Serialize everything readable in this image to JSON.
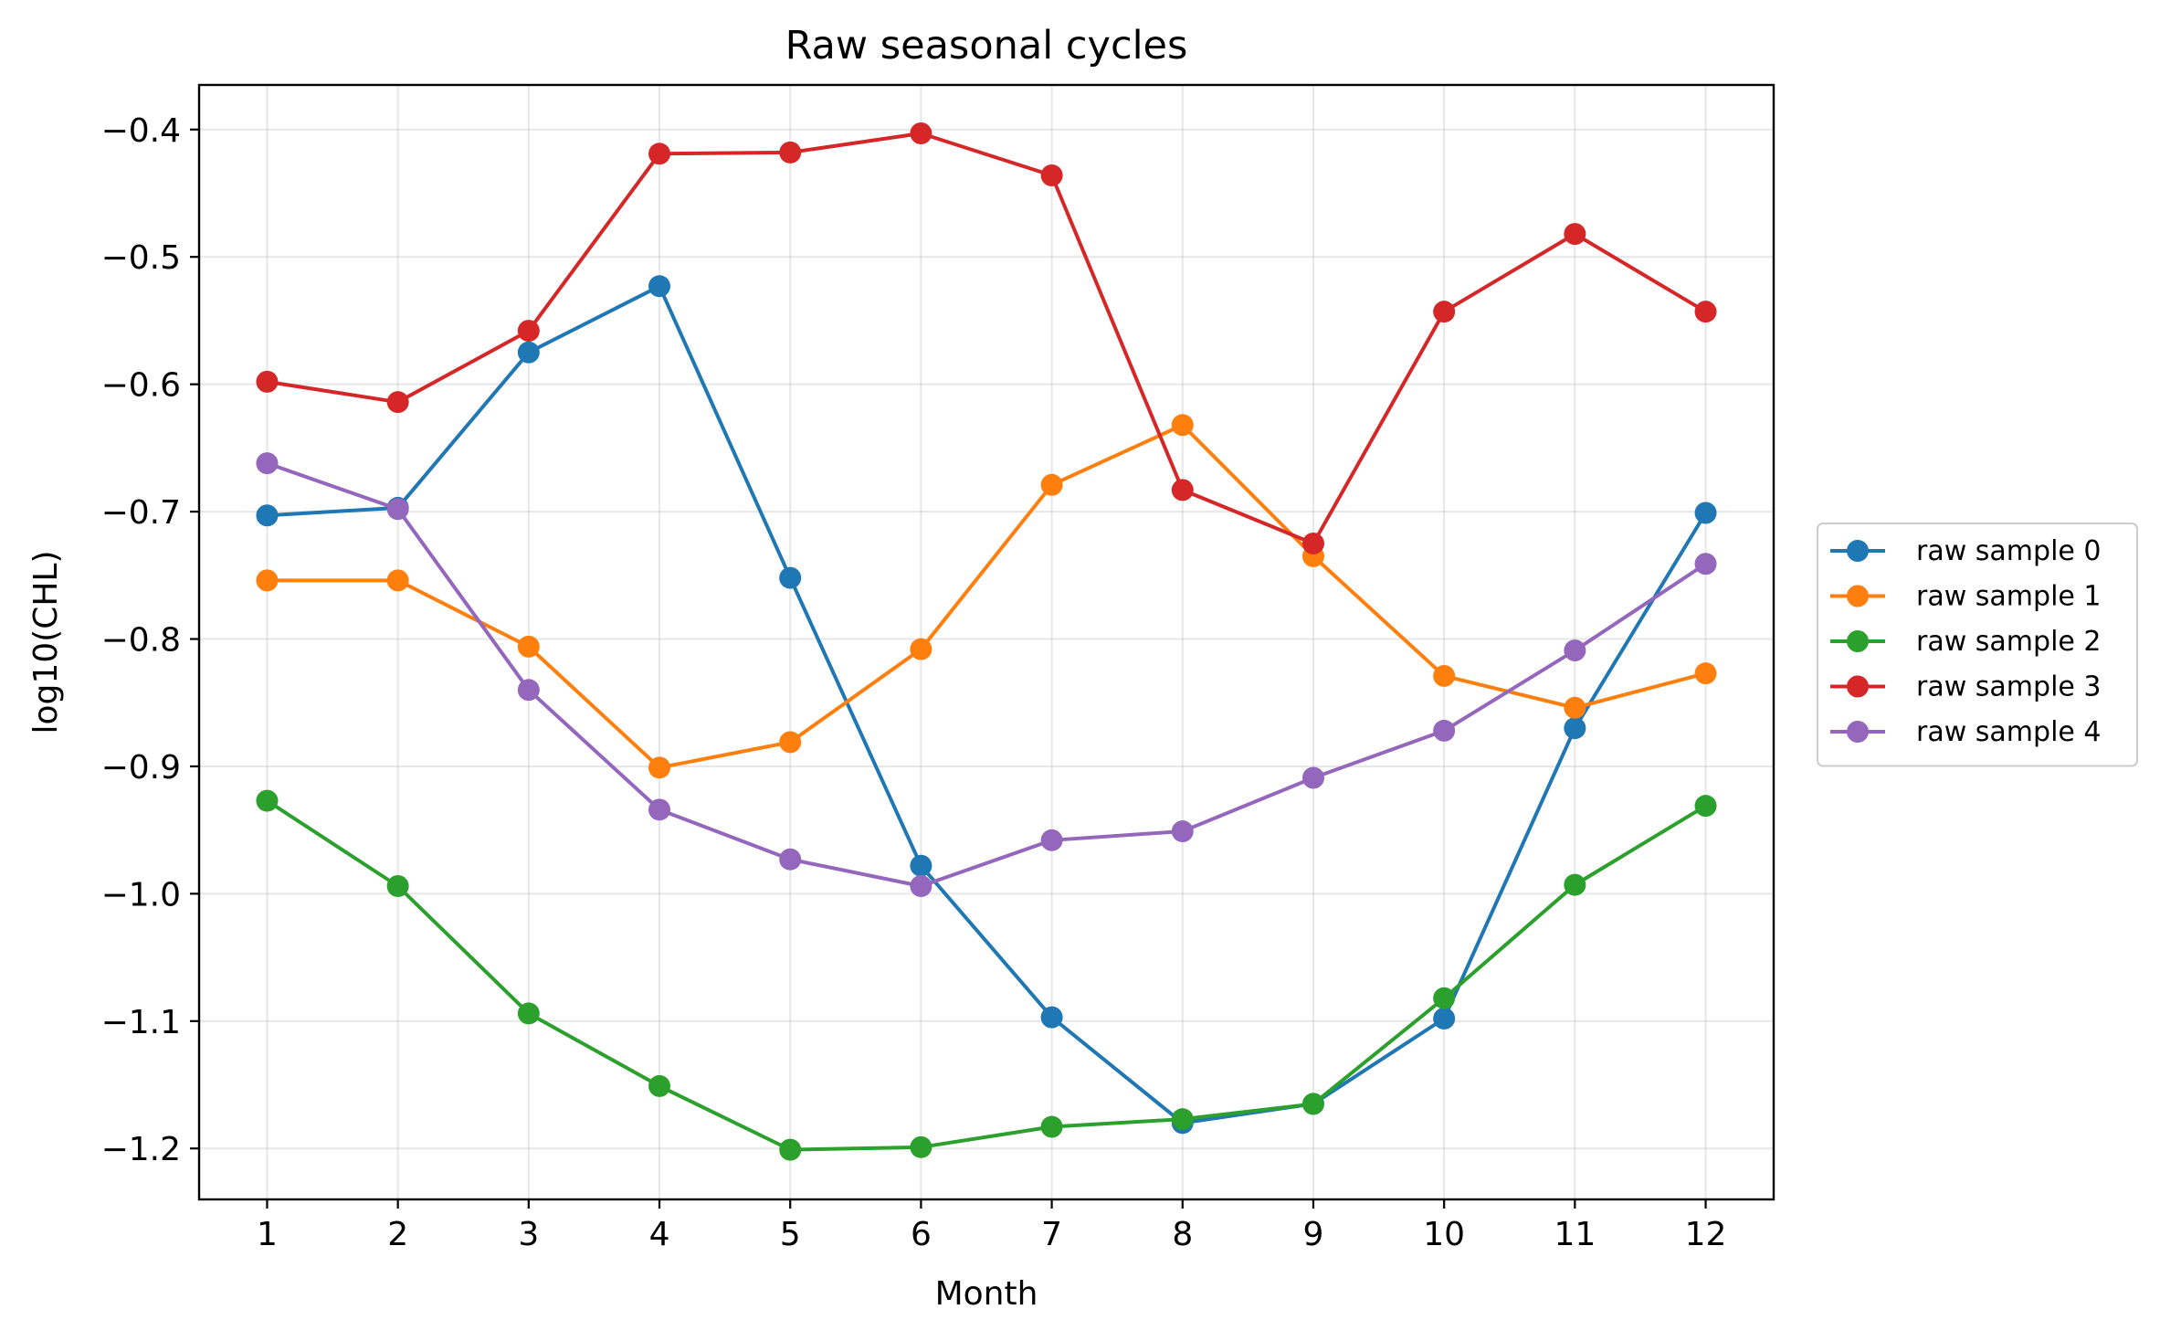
{
  "chart_data": {
    "type": "line",
    "title": "Raw seasonal cycles",
    "xlabel": "Month",
    "ylabel": "log10(CHL)",
    "x": [
      1,
      2,
      3,
      4,
      5,
      6,
      7,
      8,
      9,
      10,
      11,
      12
    ],
    "x_tick_labels": [
      "1",
      "2",
      "3",
      "4",
      "5",
      "6",
      "7",
      "8",
      "9",
      "10",
      "11",
      "12"
    ],
    "xlim": [
      0.48,
      12.52
    ],
    "ylim": [
      -1.24,
      -0.365
    ],
    "y_ticks": [
      -1.2,
      -1.1,
      -1.0,
      -0.9,
      -0.8,
      -0.7,
      -0.6,
      -0.5,
      -0.4
    ],
    "y_tick_labels": [
      "−1.2",
      "−1.1",
      "−1.0",
      "−0.9",
      "−0.8",
      "−0.7",
      "−0.6",
      "−0.5",
      "−0.4"
    ],
    "grid": true,
    "legend_position": "right, outside plot area",
    "series": [
      {
        "name": "raw sample 0",
        "color": "#1f77b4",
        "values": [
          -0.703,
          -0.697,
          -0.575,
          -0.523,
          -0.752,
          -0.978,
          -1.097,
          -1.18,
          -1.165,
          -1.098,
          -0.87,
          -0.701
        ]
      },
      {
        "name": "raw sample 1",
        "color": "#ff7f0e",
        "values": [
          -0.754,
          -0.754,
          -0.806,
          -0.901,
          -0.881,
          -0.808,
          -0.679,
          -0.632,
          -0.735,
          -0.829,
          -0.854,
          -0.827
        ]
      },
      {
        "name": "raw sample 2",
        "color": "#2ca02c",
        "values": [
          -0.927,
          -0.994,
          -1.094,
          -1.151,
          -1.201,
          -1.199,
          -1.183,
          -1.177,
          -1.165,
          -1.082,
          -0.993,
          -0.931
        ]
      },
      {
        "name": "raw sample 3",
        "color": "#d62728",
        "values": [
          -0.598,
          -0.614,
          -0.558,
          -0.419,
          -0.418,
          -0.403,
          -0.436,
          -0.683,
          -0.725,
          -0.543,
          -0.482,
          -0.543
        ]
      },
      {
        "name": "raw sample 4",
        "color": "#9467bd",
        "values": [
          -0.662,
          -0.698,
          -0.84,
          -0.934,
          -0.973,
          -0.994,
          -0.958,
          -0.951,
          -0.909,
          -0.872,
          -0.809,
          -0.741
        ]
      }
    ]
  }
}
